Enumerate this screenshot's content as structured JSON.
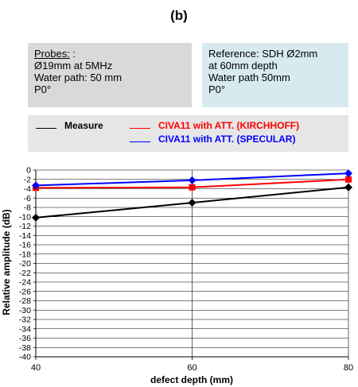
{
  "figure": {
    "panel_label": "(b)",
    "probes": {
      "title": "Probes:",
      "title_suffix": " :",
      "lines": [
        "Ø19mm at 5MHz",
        "Water path: 50 mm",
        "P0°"
      ]
    },
    "reference": {
      "lines": [
        "Reference:  SDH Ø2mm",
        "at 60mm depth",
        "Water path 50mm",
        "P0°"
      ]
    }
  },
  "chart_data": {
    "type": "line",
    "x": [
      40,
      60,
      80
    ],
    "xlabel": "defect depth (mm)",
    "ylabel": "Relative amplitude (dB)",
    "xlim": [
      40,
      80
    ],
    "ylim": [
      -40,
      0
    ],
    "xticks": [
      "40",
      "60",
      "80"
    ],
    "yticks": [
      "0",
      "-2",
      "-4",
      "-6",
      "-8",
      "-10",
      "-12",
      "-14",
      "-16",
      "-18",
      "-20",
      "-22",
      "-24",
      "-26",
      "-28",
      "-30",
      "-32",
      "-34",
      "-36",
      "-38",
      "-40"
    ],
    "grid": true,
    "legend_placement": "top",
    "series": [
      {
        "name": "Measure",
        "values": [
          -10.2,
          -7.0,
          -3.7
        ],
        "color": "#000000",
        "marker": "diamond"
      },
      {
        "name": "CIVA11 with ATT. (KIRCHHOFF)",
        "values": [
          -3.8,
          -3.7,
          -2.0
        ],
        "color": "#ff0000",
        "marker": "square"
      },
      {
        "name": "CIVA11 with ATT. (SPECULAR)",
        "values": [
          -3.3,
          -2.2,
          -0.7
        ],
        "color": "#0000ff",
        "marker": "diamond"
      }
    ]
  }
}
